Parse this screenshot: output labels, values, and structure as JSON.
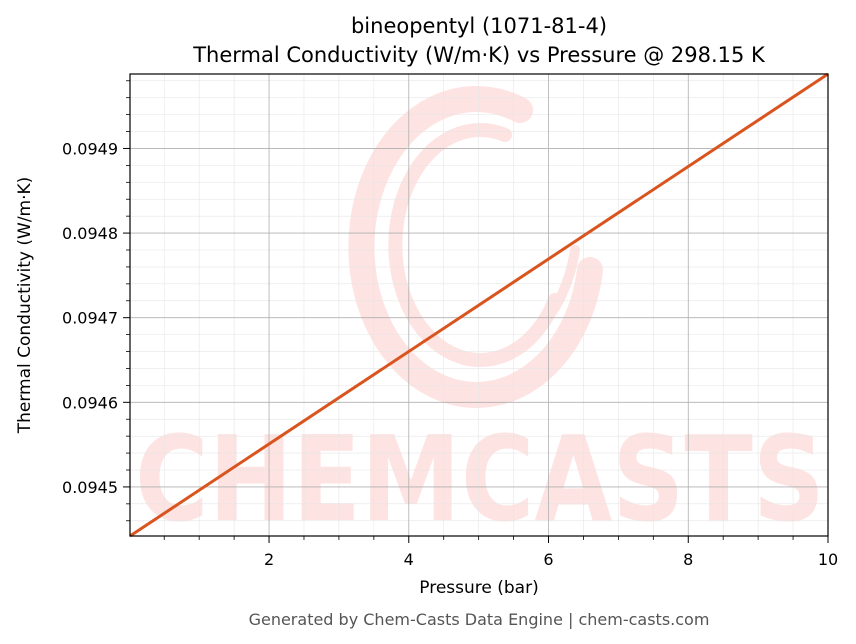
{
  "chart_data": {
    "type": "line",
    "title": "bineopentyl (1071-81-4)",
    "subtitle": "Thermal Conductivity (W/m·K) vs Pressure @ 298.15 K",
    "xlabel": "Pressure (bar)",
    "ylabel": "Thermal Conductivity (W/m·K)",
    "xlim": [
      0.01,
      10.0
    ],
    "ylim": [
      0.094442,
      0.094988
    ],
    "x_ticks": [
      {
        "value": 2,
        "label": "2"
      },
      {
        "value": 4,
        "label": "4"
      },
      {
        "value": 6,
        "label": "6"
      },
      {
        "value": 8,
        "label": "8"
      },
      {
        "value": 10,
        "label": "10"
      }
    ],
    "y_ticks": [
      {
        "value": 0.0945,
        "label": "0.0945"
      },
      {
        "value": 0.0946,
        "label": "0.0946"
      },
      {
        "value": 0.0947,
        "label": "0.0947"
      },
      {
        "value": 0.0948,
        "label": "0.0948"
      },
      {
        "value": 0.0949,
        "label": "0.0949"
      }
    ],
    "grid": true,
    "series": [
      {
        "color": "#d9541e",
        "x": [
          0.01,
          10.0
        ],
        "y": [
          0.094442,
          0.094988
        ]
      }
    ],
    "watermark": "CHEMCASTS"
  },
  "footer": "Generated by Chem-Casts Data Engine | chem-casts.com",
  "colors": {
    "line": "#d9541e",
    "watermark": "#fde3e1",
    "grid_major": "#b0b0b0",
    "grid_minor": "#e6e6e6"
  }
}
